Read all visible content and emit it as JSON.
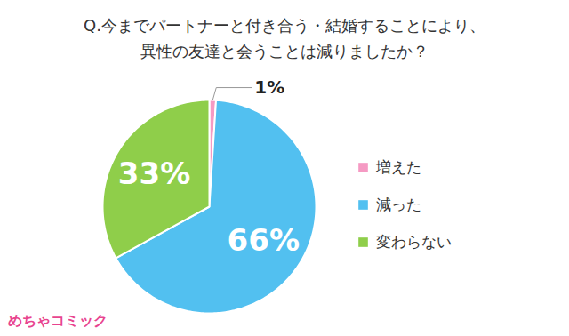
{
  "chart_data": {
    "type": "pie",
    "title": "Q.今までパートナーと付き合う・結婚することにより、\n異性の友達と会うことは減りましたか？",
    "categories": [
      "増えた",
      "減った",
      "変わらない"
    ],
    "values": [
      1,
      66,
      33
    ],
    "value_labels": [
      "1%",
      "66%",
      "33%"
    ],
    "colors": [
      "#f59ac3",
      "#52c0f0",
      "#8fce4a"
    ],
    "data_labels": true,
    "legend": "right",
    "annotations": [
      "めちゃコミック"
    ]
  }
}
